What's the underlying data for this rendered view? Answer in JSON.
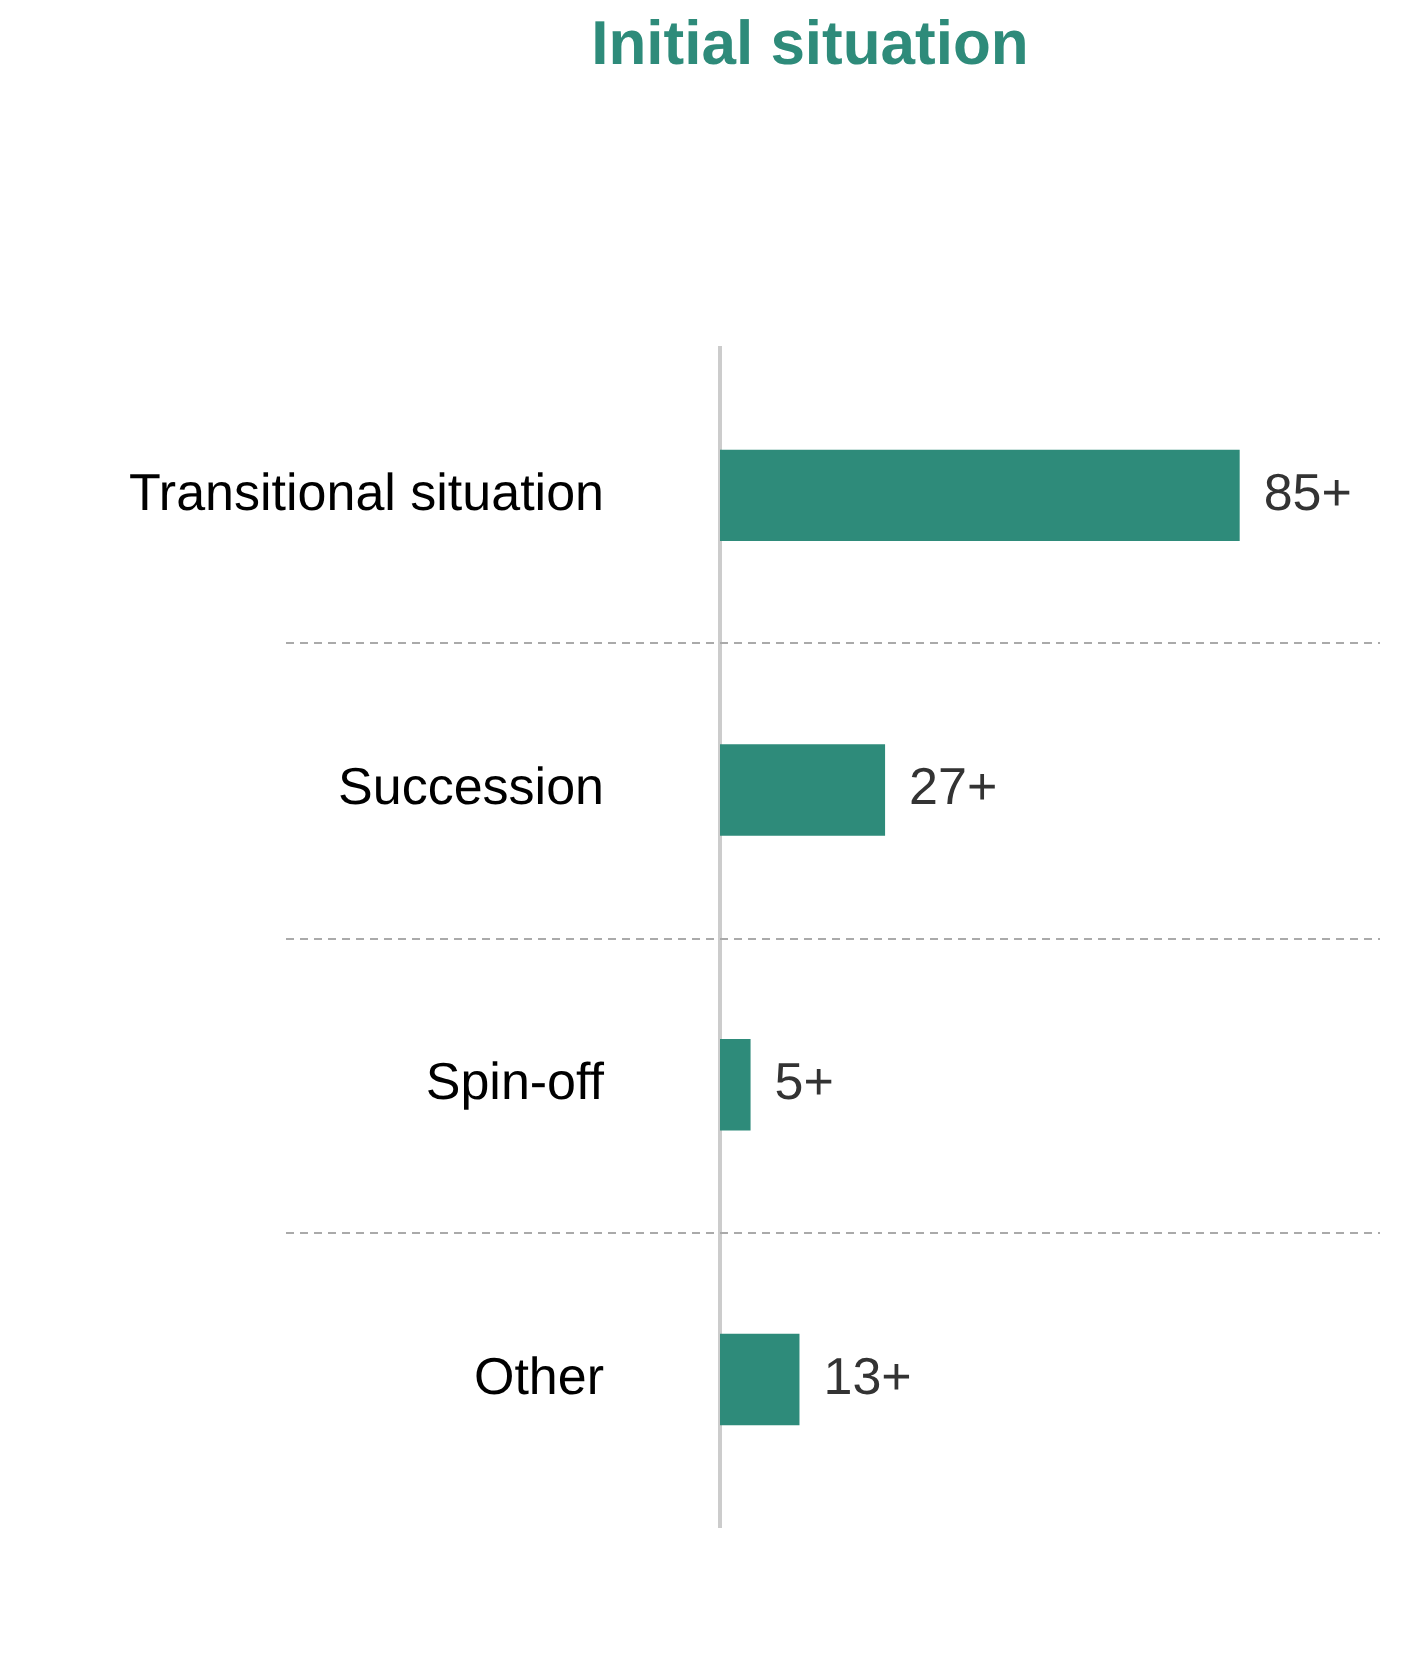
{
  "chart_data": {
    "type": "bar",
    "orientation": "horizontal",
    "title": "Initial situation",
    "tick_labels": "y",
    "categories": [
      "Transitional situation",
      "Succession",
      "Spin-off",
      "Other"
    ],
    "values": [
      85,
      27,
      5,
      13
    ],
    "value_labels": [
      "85+",
      "27+",
      "5+",
      "13+"
    ],
    "color": "#2e8b7a",
    "grid": "y",
    "legend": false
  }
}
